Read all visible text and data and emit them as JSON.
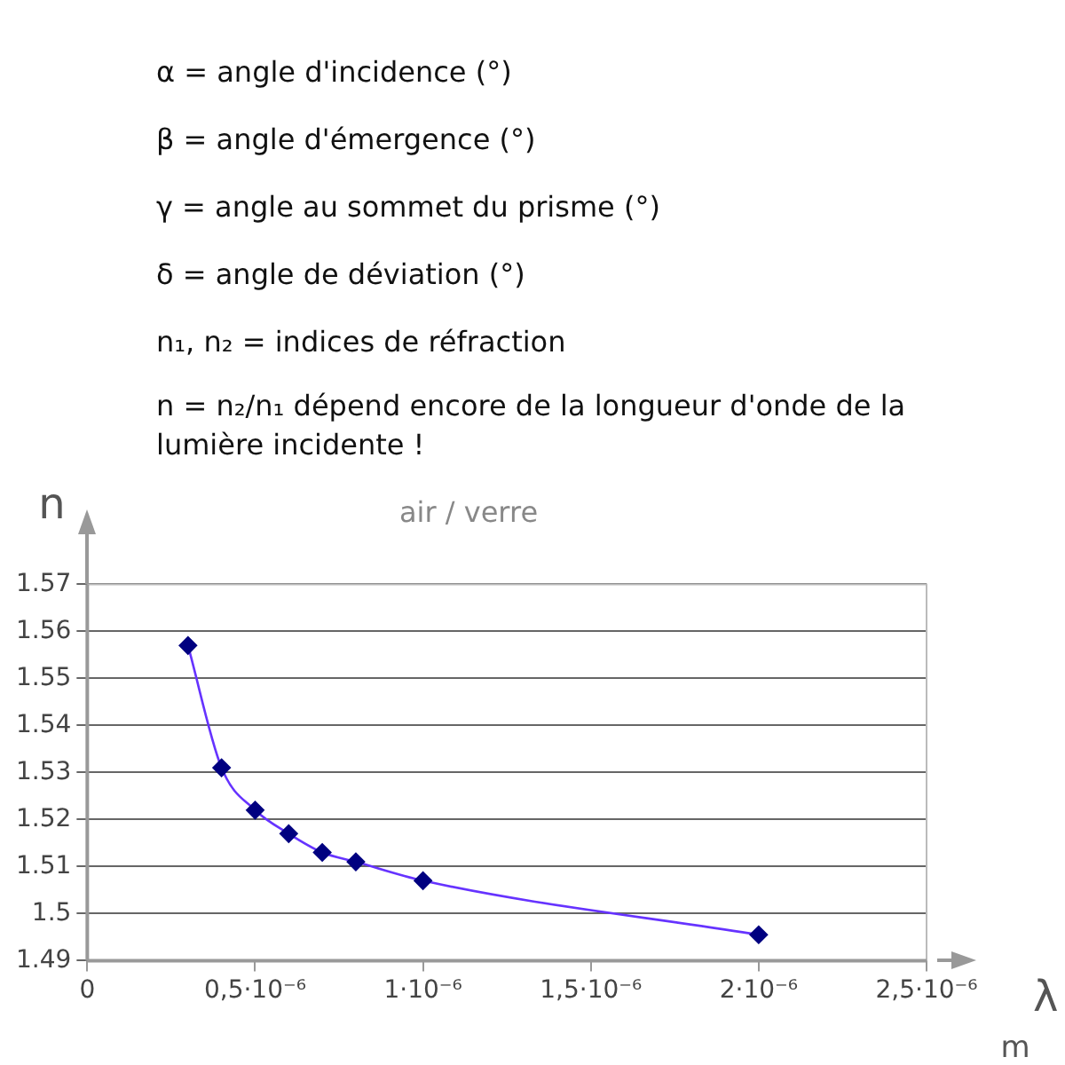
{
  "chart_data": {
    "type": "scatter",
    "title": "air / verre",
    "xlabel": "λ",
    "ylabel": "n",
    "annotations": [
      "α = angle d'incidence (°)",
      "β = angle d'émergence (°)",
      "γ = angle au sommet du prisme (°)",
      "δ = angle de déviation (°)",
      "n₁, n₂ = indices de réfraction",
      "n = n₂/n₁ dépend encore de la longueur d'onde de la lumière incidente !",
      "m"
    ],
    "x": [
      3e-07,
      4e-07,
      5e-07,
      6e-07,
      7e-07,
      8e-07,
      1e-06,
      2e-06
    ],
    "series": [
      {
        "color": "#000080",
        "marker": "diamond",
        "values": [
          1.557,
          1.531,
          1.522,
          1.517,
          1.513,
          1.511,
          1.507,
          1.4955
        ]
      },
      {
        "type": "line",
        "color": "#6633ff",
        "marker": "none",
        "values": [
          1.557,
          1.531,
          1.522,
          1.517,
          1.513,
          1.511,
          1.507,
          1.4955
        ]
      }
    ],
    "xlim": [
      0,
      2.5e-06
    ],
    "xticks": [
      0,
      {
        "value": 5e-07,
        "label": "0,5·10⁻⁶"
      },
      {
        "value": 1e-06,
        "label": "1·10⁻⁶"
      },
      {
        "value": 1.5e-06,
        "label": "1,5·10⁻⁶"
      },
      {
        "value": 2e-06,
        "label": "2·10⁻⁶"
      },
      {
        "value": 2.5e-06,
        "label": "2,5·10⁻⁶"
      }
    ],
    "ylim": [
      1.49,
      1.57
    ],
    "yticks": [
      1.49,
      1.5,
      1.51,
      1.52,
      1.53,
      1.54,
      1.55,
      1.56,
      1.57
    ],
    "grid": "y",
    "legend": false
  }
}
